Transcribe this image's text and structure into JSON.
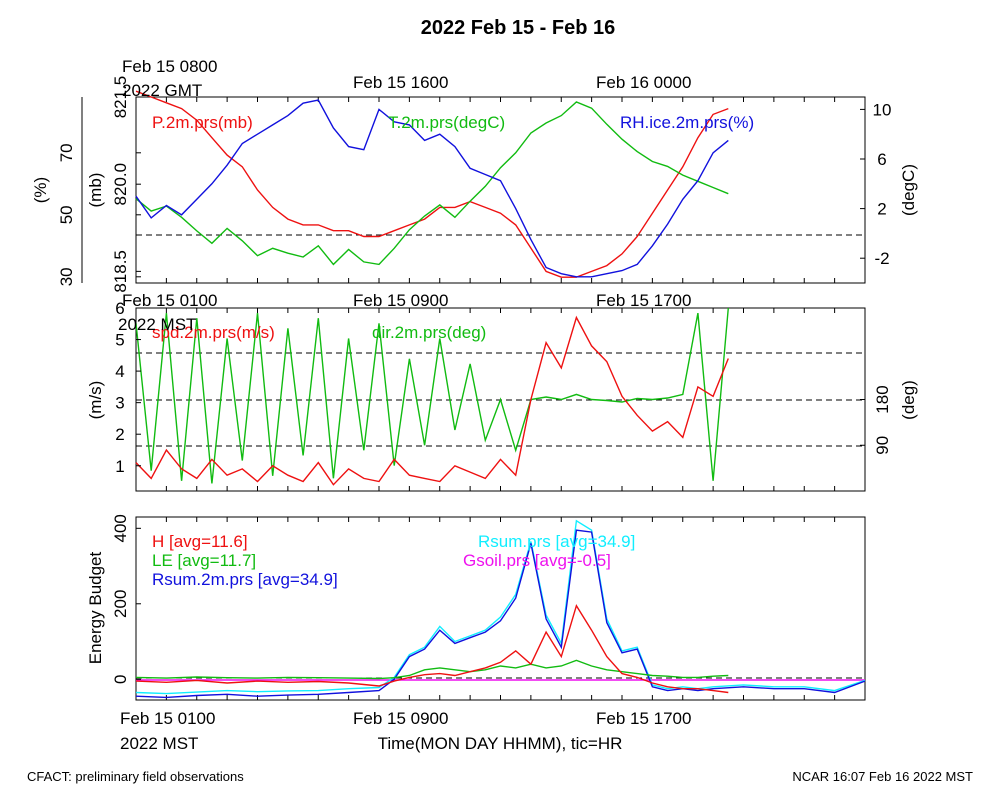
{
  "figure": {
    "title": "2022 Feb 15 - Feb 16",
    "footer_left": "CFACT: preliminary field observations",
    "footer_right": "NCAR 16:07 Feb 16 2022 MST"
  },
  "panels": [
    {
      "top_labels": [
        {
          "text": "Feb 15 0800",
          "sub": "2022 GMT"
        },
        {
          "text": "Feb 15 1600",
          "sub": ""
        },
        {
          "text": "Feb 16 0000",
          "sub": ""
        }
      ],
      "bottom_labels": [
        {
          "text": "Feb 15 0100",
          "sub": ""
        },
        {
          "text": "Feb 15 0900",
          "sub": ""
        },
        {
          "text": "Feb 15 1700",
          "sub": ""
        }
      ],
      "axis_labels": {
        "left_outer": "(%)",
        "left_inner": "(mb)",
        "right": "(degC)"
      }
    },
    {
      "top_labels": [
        {
          "text": "Feb 15 0100",
          "sub": "2022 MST"
        },
        {
          "text": "Feb 15 0900",
          "sub": ""
        },
        {
          "text": "Feb 15 1700",
          "sub": ""
        }
      ],
      "axis_labels": {
        "left": "(m/s)",
        "right": "(deg)"
      }
    },
    {
      "axis_labels": {
        "left": "Energy Budget"
      },
      "bottom_labels": [
        {
          "text": "Feb 15 0100",
          "sub": "2022 MST"
        },
        {
          "text": "Feb 15 0900",
          "sub": ""
        },
        {
          "text": "Feb 15 1700",
          "sub": ""
        }
      ],
      "xlabel": "Time(MON DAY HHMM), tic=HR"
    }
  ],
  "colors": {
    "red": "#ee1111",
    "green": "#11bb11",
    "blue": "#1111dd",
    "cyan": "#11eeff",
    "magenta": "#ee11ee",
    "black": "#000000"
  },
  "chart_data": [
    {
      "type": "line",
      "title": "2022 Feb 15 - Feb 16",
      "x_unit": "hour (MST) since 2022 Feb 15 0000",
      "xlim": [
        1,
        25
      ],
      "series": [
        {
          "name": "P.2m.prs(mb)",
          "axis": "left_inner",
          "ylim": [
            818.3,
            821.5
          ],
          "yticks": [
            "818.5",
            "820.0",
            "821.5"
          ],
          "x": [
            1,
            1.5,
            2,
            2.5,
            3,
            3.5,
            4,
            4.5,
            5,
            5.5,
            6,
            6.5,
            7,
            7.5,
            8,
            8.5,
            9,
            9.5,
            10,
            10.5,
            11,
            11.5,
            12,
            12.5,
            13,
            13.5,
            14,
            14.5,
            15,
            15.5,
            16,
            16.5,
            17,
            17.5,
            18,
            18.5,
            19,
            19.5,
            20,
            20.5
          ],
          "values": [
            821.6,
            821.5,
            821.4,
            821.3,
            821.1,
            820.8,
            820.5,
            820.3,
            819.9,
            819.6,
            819.4,
            819.3,
            819.3,
            819.2,
            819.2,
            819.1,
            819.1,
            819.2,
            819.3,
            819.4,
            819.6,
            819.6,
            819.7,
            819.6,
            819.5,
            819.3,
            818.9,
            818.5,
            818.4,
            818.4,
            818.5,
            818.6,
            818.8,
            819.1,
            819.5,
            819.9,
            820.3,
            820.8,
            821.2,
            821.3
          ]
        },
        {
          "name": "T.2m.prs(degC)",
          "axis": "right",
          "ylim": [
            -4,
            11
          ],
          "yticks": [
            "-2",
            "2",
            "6",
            "10"
          ],
          "x": [
            1,
            1.5,
            2,
            2.5,
            3,
            3.5,
            4,
            4.5,
            5,
            5.5,
            6,
            6.5,
            7,
            7.5,
            8,
            8.5,
            9,
            9.5,
            10,
            10.5,
            11,
            11.5,
            12,
            12.5,
            13,
            13.5,
            14,
            14.5,
            15,
            15.5,
            16,
            16.5,
            17,
            17.5,
            18,
            18.5,
            19,
            19.5,
            20,
            20.5
          ],
          "values": [
            2.8,
            1.8,
            2.2,
            1.3,
            0.2,
            -0.8,
            0.4,
            -0.6,
            -1.8,
            -1.2,
            -1.6,
            -1.9,
            -1.0,
            -2.5,
            -1.3,
            -2.3,
            -2.5,
            -1.2,
            0.3,
            1.4,
            2.3,
            1.3,
            2.6,
            3.8,
            5.3,
            6.5,
            8.1,
            8.9,
            9.5,
            10.6,
            10.1,
            8.8,
            7.6,
            6.6,
            5.8,
            5.4,
            4.7,
            4.2,
            3.7,
            3.2
          ]
        },
        {
          "name": "RH.ice.2m.prs(%)",
          "axis": "left_outer",
          "ylim": [
            28,
            88
          ],
          "yticks": [
            "30",
            "50",
            "70"
          ],
          "x": [
            1,
            1.5,
            2,
            2.5,
            3,
            3.5,
            4,
            4.5,
            5,
            5.5,
            6,
            6.5,
            7,
            7.5,
            8,
            8.5,
            9,
            9.5,
            10,
            10.5,
            11,
            11.5,
            12,
            12.5,
            13,
            13.5,
            14,
            14.5,
            15,
            15.5,
            16,
            16.5,
            17,
            17.5,
            18,
            18.5,
            19,
            19.5,
            20,
            20.5
          ],
          "values": [
            56,
            49,
            53,
            50,
            55,
            60,
            66,
            73,
            76,
            79,
            82,
            86,
            87,
            78,
            72,
            71,
            84,
            80,
            79,
            74,
            76,
            72,
            65,
            63,
            61,
            52,
            42,
            33,
            31,
            30,
            30,
            31,
            32,
            34,
            40,
            47,
            55,
            61,
            70,
            74
          ]
        }
      ]
    },
    {
      "type": "line",
      "x_unit": "hour (MST) since 2022 Feb 15 0000",
      "xlim": [
        1,
        25
      ],
      "series": [
        {
          "name": "spd.2m.prs(m/s)",
          "axis": "left",
          "ylim": [
            0.2,
            6
          ],
          "yticks": [
            "1",
            "2",
            "3",
            "4",
            "5",
            "6"
          ],
          "x": [
            1,
            1.5,
            2,
            2.5,
            3,
            3.5,
            4,
            4.5,
            5,
            5.5,
            6,
            6.5,
            7,
            7.5,
            8,
            8.5,
            9,
            9.5,
            10,
            10.5,
            11,
            11.5,
            12,
            12.5,
            13,
            13.5,
            14,
            14.5,
            15,
            15.5,
            16,
            16.5,
            17,
            17.5,
            18,
            18.5,
            19,
            19.5,
            20,
            20.5
          ],
          "values": [
            1.1,
            0.6,
            1.5,
            0.9,
            0.6,
            1.2,
            0.7,
            0.9,
            0.5,
            1.0,
            0.7,
            0.5,
            1.1,
            0.4,
            0.9,
            0.6,
            0.5,
            1.2,
            0.7,
            0.6,
            0.5,
            1.0,
            0.8,
            0.6,
            1.2,
            0.7,
            3.1,
            4.9,
            4.1,
            5.7,
            4.8,
            4.3,
            3.2,
            2.6,
            2.1,
            2.4,
            1.9,
            3.5,
            3.2,
            4.4
          ]
        },
        {
          "name": "dir.2m.prs(deg)",
          "axis": "right",
          "ylim": [
            0,
            360
          ],
          "yticks": [
            "90",
            "180"
          ],
          "x": [
            1,
            1.5,
            2,
            2.5,
            3,
            3.5,
            4,
            4.5,
            5,
            5.5,
            6,
            6.5,
            7,
            7.5,
            8,
            8.5,
            9,
            9.5,
            10,
            10.5,
            11,
            11.5,
            12,
            12.5,
            13,
            13.5,
            14,
            14.5,
            15,
            15.5,
            16,
            16.5,
            17,
            17.5,
            18,
            18.5,
            19,
            19.5,
            20,
            20.5
          ],
          "values": [
            330,
            40,
            350,
            20,
            340,
            15,
            300,
            60,
            350,
            30,
            320,
            70,
            340,
            25,
            300,
            80,
            330,
            50,
            260,
            90,
            300,
            120,
            250,
            100,
            180,
            80,
            180,
            185,
            180,
            190,
            180,
            178,
            175,
            182,
            180,
            183,
            190,
            350,
            20,
            360
          ]
        }
      ]
    },
    {
      "type": "line",
      "x_unit": "hour (MST) since 2022 Feb 15 0000",
      "xlim": [
        1,
        25
      ],
      "ylim": [
        -55,
        430
      ],
      "yticks": [
        "0",
        "200",
        "400"
      ],
      "ylabel": "Energy Budget",
      "xlabel": "Time(MON DAY HHMM), tic=HR",
      "series": [
        {
          "name": "H [avg=11.6]",
          "color": "red",
          "x": [
            1,
            2,
            3,
            4,
            5,
            6,
            7,
            8,
            9,
            9.5,
            10,
            10.5,
            11,
            11.5,
            12,
            12.5,
            13,
            13.5,
            14,
            14.5,
            15,
            15.5,
            16,
            16.5,
            17,
            17.5,
            18,
            18.5,
            19,
            19.5,
            20,
            20.5
          ],
          "values": [
            -5,
            -8,
            -3,
            -10,
            -5,
            -8,
            -6,
            -10,
            -18,
            -5,
            5,
            12,
            15,
            10,
            20,
            30,
            45,
            75,
            40,
            125,
            60,
            195,
            130,
            60,
            15,
            5,
            -10,
            -20,
            -25,
            -25,
            -30,
            -35
          ]
        },
        {
          "name": "LE [avg=11.7]",
          "color": "green",
          "x": [
            1,
            2,
            3,
            4,
            5,
            6,
            7,
            8,
            9,
            9.5,
            10,
            10.5,
            11,
            11.5,
            12,
            12.5,
            13,
            13.5,
            14,
            14.5,
            15,
            15.5,
            16,
            16.5,
            17,
            17.5,
            18,
            18.5,
            19,
            19.5,
            20,
            20.5
          ],
          "values": [
            5,
            3,
            6,
            4,
            3,
            5,
            4,
            3,
            2,
            4,
            10,
            25,
            30,
            25,
            20,
            25,
            35,
            30,
            40,
            30,
            35,
            50,
            35,
            25,
            20,
            15,
            10,
            8,
            5,
            5,
            8,
            10
          ]
        },
        {
          "name": "Rsum.2m.prs [avg=34.9]",
          "color": "blue",
          "x": [
            1,
            2,
            3,
            4,
            5,
            6,
            7,
            8,
            9,
            9.5,
            10,
            10.5,
            11,
            11.5,
            12,
            12.5,
            13,
            13.5,
            14,
            14.5,
            15,
            15.5,
            16,
            16.5,
            17,
            17.5,
            18,
            18.5,
            19,
            19.5,
            20,
            21,
            22,
            23,
            24,
            25
          ],
          "values": [
            -45,
            -48,
            -43,
            -40,
            -45,
            -42,
            -40,
            -35,
            -30,
            0,
            60,
            80,
            130,
            95,
            110,
            125,
            155,
            215,
            360,
            160,
            85,
            395,
            390,
            150,
            70,
            80,
            -20,
            -30,
            -25,
            -30,
            -25,
            -20,
            -25,
            -25,
            -35,
            -5
          ]
        },
        {
          "name": "Rsum.prs [avg=34.9]",
          "color": "cyan",
          "x": [
            1,
            2,
            3,
            4,
            5,
            6,
            7,
            8,
            9,
            9.5,
            10,
            10.5,
            11,
            11.5,
            12,
            12.5,
            13,
            13.5,
            14,
            14.5,
            15,
            15.5,
            16,
            16.5,
            17,
            17.5,
            18,
            18.5,
            19,
            19.5,
            20,
            21,
            22,
            23,
            24,
            25
          ],
          "values": [
            -35,
            -38,
            -34,
            -30,
            -33,
            -31,
            -30,
            -25,
            -22,
            5,
            65,
            85,
            140,
            100,
            115,
            130,
            165,
            225,
            365,
            170,
            95,
            420,
            395,
            160,
            75,
            85,
            -15,
            -25,
            -20,
            -25,
            -20,
            -15,
            -20,
            -20,
            -30,
            -3
          ]
        },
        {
          "name": "Gsoil.prs [avg=-0.5]",
          "color": "magenta",
          "x": [
            1,
            25
          ],
          "values": [
            -2,
            -2
          ]
        }
      ]
    }
  ]
}
